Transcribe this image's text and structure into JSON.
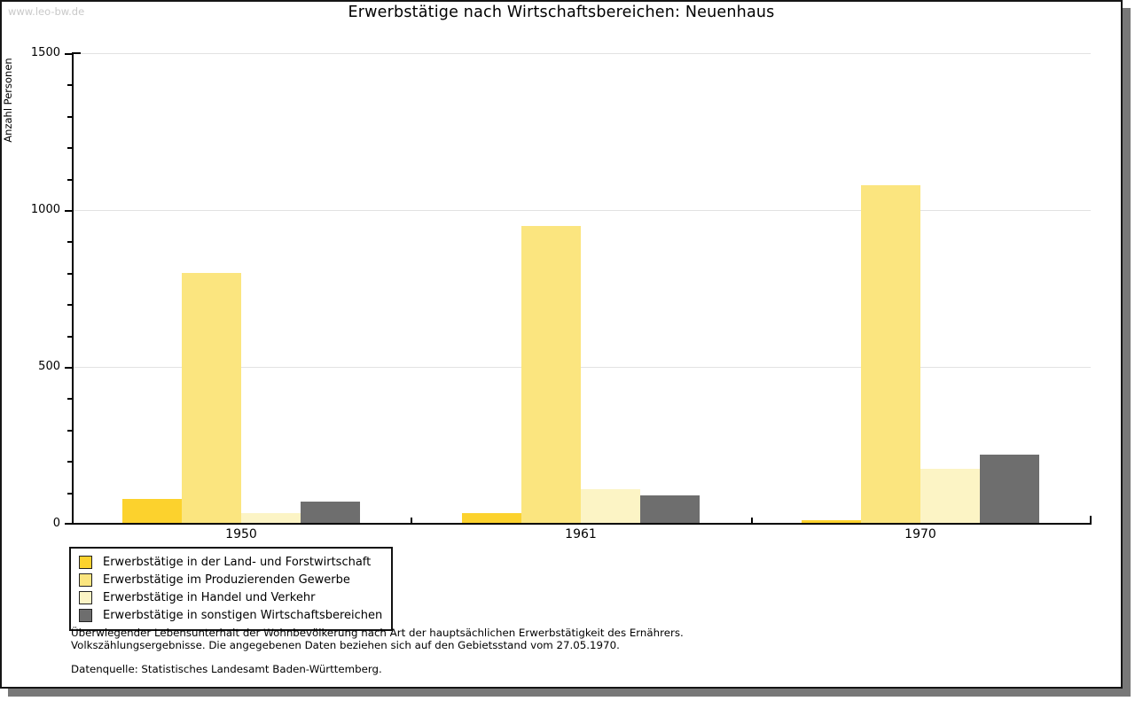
{
  "watermark": "www.leo-bw.de",
  "title": "Erwerbstätige nach Wirtschaftsbereichen: Neuenhaus",
  "y_axis_label": "Anzahl Personen",
  "chart_data": {
    "type": "bar",
    "title": "Erwerbstätige nach Wirtschaftsbereichen: Neuenhaus",
    "xlabel": "",
    "ylabel": "Anzahl Personen",
    "categories": [
      "1950",
      "1961",
      "1970"
    ],
    "series": [
      {
        "name": "Erwerbstätige in der Land- und Forstwirtschaft",
        "color": "#FCD22D",
        "values": [
          80,
          35,
          10
        ]
      },
      {
        "name": "Erwerbstätige im Produzierenden Gewerbe",
        "color": "#FBE57F",
        "values": [
          800,
          950,
          1080
        ]
      },
      {
        "name": "Erwerbstätige in Handel und Verkehr",
        "color": "#FCF4C5",
        "values": [
          35,
          110,
          175
        ]
      },
      {
        "name": "Erwerbstätige in sonstigen Wirtschaftsbereichen",
        "color": "#6E6E6E",
        "values": [
          70,
          90,
          220
        ]
      }
    ],
    "ylim": [
      0,
      1500
    ],
    "y_major_ticks": [
      0,
      500,
      1000,
      1500
    ],
    "y_minor_step": 100,
    "grid": "horizontal",
    "legend_position": "bottom-left"
  },
  "footnotes": {
    "line1": "Überwiegender Lebensunterhalt der Wohnbevölkerung nach Art der hauptsächlichen Erwerbstätigkeit des Ernährers.",
    "line2": "Volkszählungsergebnisse. Die angegebenen Daten beziehen sich auf den Gebietsstand vom 27.05.1970.",
    "source": "Datenquelle: Statistisches Landesamt Baden-Württemberg."
  },
  "colors": {
    "axis": "#000000",
    "grid": "#e2e2e2",
    "watermark": "#c9c9c9",
    "frame_shadow": "#787878"
  }
}
